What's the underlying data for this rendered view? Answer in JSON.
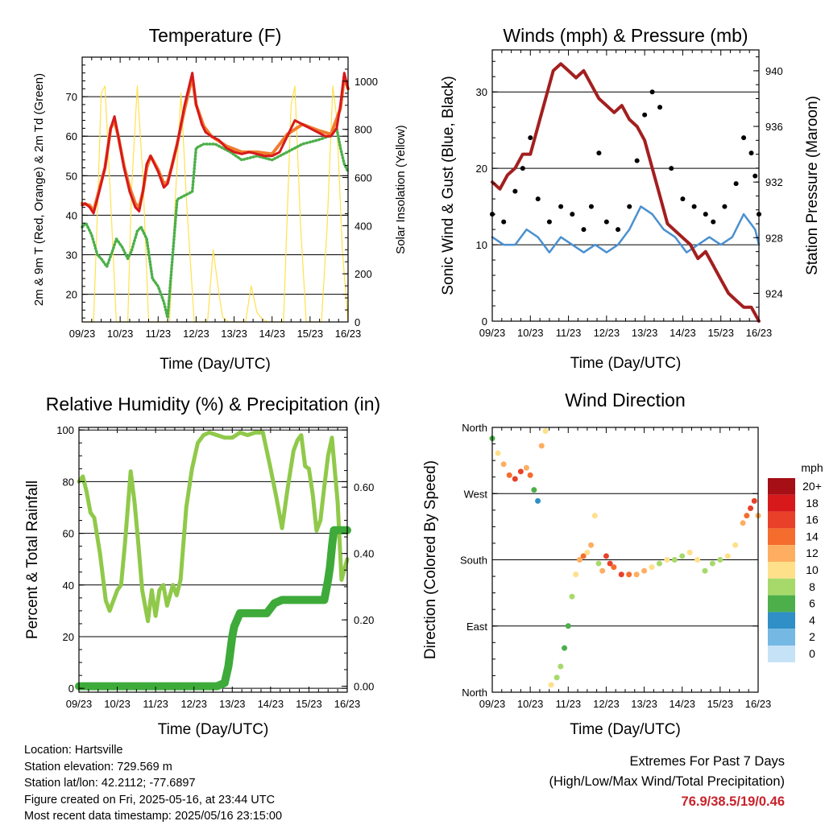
{
  "chart_data": [
    {
      "type": "line",
      "title": "Temperature (F)",
      "xlabel": "Time (Day/UTC)",
      "ylabel": "2m & 9m T (Red, Orange) & 2m Td (Green)",
      "y2label": "Solar Insolation (Yellow)",
      "x_ticks": [
        "09/23",
        "10/23",
        "11/23",
        "12/23",
        "13/23",
        "14/23",
        "15/23",
        "16/23"
      ],
      "xlim": [
        0,
        7
      ],
      "ylim": [
        13,
        80
      ],
      "y_ticks": [
        20,
        30,
        40,
        50,
        60,
        70
      ],
      "y2lim": [
        0,
        1100
      ],
      "y2_ticks": [
        0,
        200,
        400,
        600,
        800,
        1000
      ],
      "grid": true,
      "series": [
        {
          "name": "2m T",
          "axis": "left",
          "color": "#d7191c",
          "x": [
            0,
            0.08,
            0.2,
            0.3,
            0.45,
            0.6,
            0.75,
            0.85,
            0.95,
            1.1,
            1.25,
            1.4,
            1.5,
            1.6,
            1.7,
            1.8,
            2.0,
            2.15,
            2.25,
            2.35,
            2.5,
            2.7,
            2.8,
            2.9,
            3.0,
            3.15,
            3.25,
            3.4,
            3.6,
            3.8,
            4.0,
            4.2,
            4.4,
            4.6,
            4.8,
            5.0,
            5.2,
            5.4,
            5.6,
            5.8,
            6.0,
            6.2,
            6.4,
            6.55,
            6.7,
            6.8,
            6.9,
            7.0
          ],
          "y": [
            42.5,
            43,
            42,
            40.5,
            46,
            52,
            62,
            65,
            60,
            52,
            46,
            42,
            41,
            46,
            53,
            55,
            51,
            47,
            48,
            52,
            58,
            68,
            72,
            76,
            68,
            63,
            61,
            60,
            59,
            57,
            56,
            55.5,
            56,
            55.5,
            55,
            55,
            56,
            60,
            64,
            63,
            62,
            61,
            60,
            60,
            62,
            68,
            76,
            72
          ]
        },
        {
          "name": "9m T",
          "axis": "left",
          "color": "#f07c2c",
          "x": [
            0,
            0.2,
            0.3,
            0.45,
            0.6,
            0.75,
            0.85,
            0.95,
            1.1,
            1.25,
            1.4,
            1.5,
            1.6,
            1.7,
            1.8,
            2.0,
            2.15,
            2.25,
            2.35,
            2.5,
            2.7,
            2.8,
            2.9,
            3.0,
            3.2,
            3.4,
            3.8,
            4.2,
            4.6,
            5.0,
            5.4,
            5.8,
            6.2,
            6.55,
            6.8,
            6.9,
            7.0
          ],
          "y": [
            43,
            42.5,
            41,
            46.5,
            52,
            62,
            64,
            60,
            52.5,
            47,
            43,
            42,
            46,
            52,
            55,
            51.5,
            48,
            48.5,
            52,
            58,
            67,
            71,
            75,
            68,
            62.5,
            60,
            57.5,
            56,
            56,
            55.5,
            60.5,
            63,
            61.5,
            60.5,
            67,
            75,
            72
          ]
        },
        {
          "name": "2m Td",
          "axis": "left",
          "color": "#4daf4a",
          "x": [
            0,
            0.1,
            0.25,
            0.4,
            0.5,
            0.65,
            0.8,
            0.9,
            1.05,
            1.2,
            1.3,
            1.45,
            1.55,
            1.7,
            1.85,
            2.0,
            2.15,
            2.25,
            2.3,
            2.5,
            2.7,
            2.9,
            3.0,
            3.2,
            3.5,
            3.9,
            4.2,
            4.6,
            5.0,
            5.4,
            5.8,
            6.2,
            6.5,
            6.6,
            6.7,
            6.8,
            6.9,
            7.0
          ],
          "y": [
            37,
            38,
            35,
            30,
            29,
            27,
            31,
            34,
            32,
            29,
            31,
            36,
            37,
            34,
            24,
            22,
            18,
            14,
            20,
            44,
            45,
            46,
            57,
            58,
            58,
            56,
            54,
            55,
            54,
            56,
            58,
            59,
            60,
            61,
            62,
            57,
            53,
            51
          ]
        },
        {
          "name": "Solar Insolation",
          "axis": "right",
          "color": "#ffe14d",
          "x": [
            0,
            0.3,
            0.4,
            0.5,
            0.6,
            0.75,
            0.9,
            1.0,
            1.2,
            1.3,
            1.45,
            1.6,
            1.75,
            1.95,
            2.3,
            2.45,
            2.6,
            2.75,
            2.95,
            3.3,
            3.45,
            3.6,
            3.7,
            3.85,
            4.3,
            4.45,
            4.6,
            4.75,
            4.9,
            5.3,
            5.5,
            5.6,
            5.75,
            5.9,
            6.3,
            6.45,
            6.6,
            6.7,
            6.85,
            7.0
          ],
          "y": [
            0,
            0,
            450,
            950,
            980,
            500,
            0,
            0,
            0,
            550,
            980,
            600,
            0,
            0,
            0,
            500,
            950,
            500,
            0,
            0,
            300,
            120,
            20,
            0,
            0,
            150,
            40,
            10,
            0,
            0,
            900,
            980,
            400,
            0,
            0,
            400,
            980,
            850,
            300,
            0
          ]
        }
      ]
    },
    {
      "type": "scatter",
      "title": "Winds (mph) & Pressure (mb)",
      "xlabel": "Time (Day/UTC)",
      "ylabel": "Sonic Wind & Gust (Blue, Black)",
      "y2label": "Station Pressure (Maroon)",
      "x_ticks": [
        "09/23",
        "10/23",
        "11/23",
        "12/23",
        "13/23",
        "14/23",
        "15/23",
        "16/23"
      ],
      "xlim": [
        0,
        7
      ],
      "ylim": [
        0,
        35.5
      ],
      "y_ticks": [
        0,
        10,
        20,
        30
      ],
      "y2lim": [
        922,
        941.5
      ],
      "y2_ticks": [
        924,
        928,
        932,
        936,
        940
      ],
      "grid": true,
      "series": [
        {
          "name": "Sonic Wind",
          "axis": "left",
          "color": "#4a90d0",
          "x": [
            0,
            0.3,
            0.6,
            0.9,
            1.2,
            1.5,
            1.8,
            2.1,
            2.4,
            2.7,
            3.0,
            3.3,
            3.6,
            3.9,
            4.2,
            4.5,
            4.8,
            5.1,
            5.4,
            5.7,
            6.0,
            6.3,
            6.6,
            6.9,
            7.0
          ],
          "y": [
            11,
            10,
            10,
            12,
            11,
            9,
            11,
            10,
            9,
            10,
            9,
            10,
            12,
            15,
            14,
            12,
            11,
            9,
            10,
            11,
            10,
            11,
            14,
            12,
            10
          ]
        },
        {
          "name": "Gust",
          "axis": "left",
          "color": "#000000",
          "x": [
            0,
            0.3,
            0.6,
            0.8,
            1.0,
            1.2,
            1.5,
            1.8,
            2.1,
            2.4,
            2.6,
            2.8,
            3.0,
            3.3,
            3.6,
            3.8,
            4.0,
            4.2,
            4.4,
            4.7,
            5.0,
            5.3,
            5.6,
            5.8,
            6.1,
            6.4,
            6.6,
            6.8,
            6.9,
            7.0
          ],
          "y": [
            14,
            13,
            17,
            20,
            24,
            16,
            13,
            15,
            14,
            12,
            15,
            22,
            13,
            12,
            15,
            21,
            27,
            30,
            28,
            20,
            16,
            15,
            14,
            13,
            15,
            18,
            24,
            22,
            19,
            14
          ]
        },
        {
          "name": "Station Pressure",
          "axis": "right",
          "color": "#a31f1f",
          "x": [
            0,
            0.2,
            0.4,
            0.6,
            0.8,
            1.0,
            1.2,
            1.4,
            1.6,
            1.8,
            2.0,
            2.2,
            2.4,
            2.6,
            2.8,
            3.0,
            3.2,
            3.4,
            3.6,
            3.8,
            4.0,
            4.2,
            4.4,
            4.6,
            4.8,
            5.0,
            5.2,
            5.4,
            5.6,
            5.8,
            6.0,
            6.2,
            6.4,
            6.6,
            6.8,
            6.9,
            7.0
          ],
          "y": [
            932,
            931.5,
            932.5,
            933,
            934,
            934,
            936,
            938,
            940,
            940.5,
            940,
            939.5,
            940,
            939,
            938,
            937.5,
            937,
            937.5,
            936.5,
            936,
            935,
            933,
            931,
            929,
            928.5,
            928,
            927.5,
            926.5,
            927,
            926,
            925,
            924,
            923.5,
            923,
            923,
            922.5,
            922
          ]
        }
      ]
    },
    {
      "type": "line",
      "title": "Relative Humidity (%) & Precipitation (in)",
      "xlabel": "Time (Day/UTC)",
      "ylabel": "Percent & Total Rainfall",
      "x_ticks": [
        "09/23",
        "10/23",
        "11/23",
        "12/23",
        "13/23",
        "14/23",
        "15/23",
        "16/23"
      ],
      "xlim": [
        0,
        7
      ],
      "ylim": [
        -1.5,
        101
      ],
      "y_ticks": [
        0,
        20,
        40,
        60,
        80,
        100
      ],
      "y2lim": [
        -0.018,
        0.78
      ],
      "y2_ticks": [
        0.0,
        0.2,
        0.4,
        0.6
      ],
      "y2_tick_labels": [
        "0.00",
        "0.20",
        "0.40",
        "0.60"
      ],
      "grid": true,
      "series": [
        {
          "name": "Relative Humidity",
          "axis": "left",
          "color": "#90c94a",
          "x": [
            0,
            0.1,
            0.2,
            0.3,
            0.4,
            0.55,
            0.7,
            0.8,
            0.9,
            1.0,
            1.1,
            1.2,
            1.35,
            1.45,
            1.55,
            1.65,
            1.8,
            1.9,
            2.0,
            2.1,
            2.2,
            2.3,
            2.45,
            2.55,
            2.65,
            2.8,
            2.95,
            3.1,
            3.25,
            3.4,
            3.6,
            3.8,
            4.0,
            4.2,
            4.4,
            4.6,
            4.8,
            4.9,
            5.0,
            5.15,
            5.3,
            5.45,
            5.6,
            5.7,
            5.8,
            5.9,
            6.0,
            6.1,
            6.2,
            6.3,
            6.4,
            6.5,
            6.6,
            6.75,
            6.85,
            7.0
          ],
          "y": [
            80,
            82,
            76,
            68,
            66,
            52,
            34,
            30,
            34,
            38,
            40,
            56,
            84,
            72,
            56,
            38,
            26,
            38,
            28,
            38,
            40,
            32,
            40,
            36,
            42,
            70,
            85,
            95,
            98,
            99,
            98,
            97,
            97,
            99,
            98,
            99,
            99,
            92,
            85,
            74,
            62,
            78,
            92,
            96,
            98,
            86,
            85,
            75,
            61,
            65,
            78,
            90,
            97,
            72,
            42,
            50
          ]
        },
        {
          "name": "Total Rainfall",
          "axis": "right",
          "color": "#3eaa3a",
          "x": [
            0,
            1,
            2,
            3,
            3.6,
            3.8,
            3.9,
            4.0,
            4.05,
            4.2,
            4.5,
            4.9,
            5.1,
            5.3,
            5.5,
            6.0,
            6.4,
            6.5,
            6.55,
            6.6,
            6.65,
            6.8,
            7.0
          ],
          "y": [
            0,
            0,
            0,
            0,
            0,
            0.01,
            0.06,
            0.15,
            0.18,
            0.22,
            0.22,
            0.22,
            0.25,
            0.26,
            0.26,
            0.26,
            0.26,
            0.32,
            0.36,
            0.42,
            0.47,
            0.47,
            0.47
          ]
        }
      ]
    },
    {
      "type": "scatter",
      "title": "Wind Direction",
      "xlabel": "Time (Day/UTC)",
      "ylabel": "Direction (Colored By Speed)",
      "x_ticks": [
        "09/23",
        "10/23",
        "11/23",
        "12/23",
        "13/23",
        "14/23",
        "15/23",
        "16/23"
      ],
      "xlim": [
        0,
        7
      ],
      "ylim": [
        0,
        360
      ],
      "y_ticks": [
        0,
        90,
        180,
        270,
        360
      ],
      "y_tick_labels": [
        "North",
        "East",
        "South",
        "West",
        "North"
      ],
      "grid": true,
      "x": [
        0,
        0.15,
        0.3,
        0.45,
        0.6,
        0.75,
        0.9,
        1.0,
        1.1,
        1.2,
        1.3,
        1.4,
        1.55,
        1.7,
        1.8,
        1.9,
        2.0,
        2.1,
        2.2,
        2.3,
        2.4,
        2.5,
        2.6,
        2.7,
        2.8,
        2.9,
        3.0,
        3.1,
        3.2,
        3.4,
        3.6,
        3.8,
        4.0,
        4.2,
        4.4,
        4.6,
        4.8,
        5.0,
        5.2,
        5.4,
        5.6,
        5.8,
        6.0,
        6.2,
        6.4,
        6.6,
        6.7,
        6.8,
        6.9,
        7.0
      ],
      "y": [
        345,
        325,
        310,
        295,
        290,
        300,
        305,
        295,
        275,
        260,
        335,
        355,
        10,
        20,
        35,
        60,
        90,
        130,
        160,
        180,
        185,
        190,
        200,
        240,
        175,
        165,
        185,
        175,
        170,
        160,
        160,
        160,
        165,
        170,
        175,
        180,
        180,
        185,
        190,
        180,
        165,
        175,
        180,
        185,
        200,
        230,
        240,
        250,
        260,
        240
      ],
      "speed": [
        6,
        9,
        12,
        14,
        16,
        15,
        12,
        14,
        6,
        4,
        12,
        10,
        9,
        8,
        7,
        6,
        6,
        8,
        10,
        11,
        14,
        9,
        12,
        10,
        8,
        12,
        15,
        16,
        14,
        15,
        14,
        12,
        11,
        10,
        8,
        9,
        7,
        8,
        9,
        10,
        8,
        7,
        8,
        9,
        10,
        12,
        14,
        16,
        15,
        12
      ],
      "colorbar": {
        "title": "mph",
        "labels": [
          "20+",
          "18",
          "16",
          "14",
          "12",
          "10",
          "8",
          "6",
          "4",
          "2",
          "0"
        ],
        "colors": [
          "#a50f15",
          "#d7191c",
          "#e8412a",
          "#f46d2c",
          "#fdae61",
          "#fee08b",
          "#a6d96a",
          "#4daf4a",
          "#2f8fc6",
          "#74b8e3",
          "#c6e2f7"
        ]
      }
    }
  ],
  "info": {
    "location": "Location: Hartsville",
    "elevation": "Station elevation: 729.569 m",
    "latlon": "Station lat/lon: 42.2112; -77.6897",
    "created": "Figure created on Fri, 2025-05-16, at 23:44 UTC",
    "recent": "Most recent data timestamp: 2025/05/16 23:15:00"
  },
  "extremes": {
    "title": "Extremes For Past 7 Days",
    "subtitle": "(High/Low/Max Wind/Total Precipitation)",
    "values": "76.9/38.5/19/0.46"
  }
}
